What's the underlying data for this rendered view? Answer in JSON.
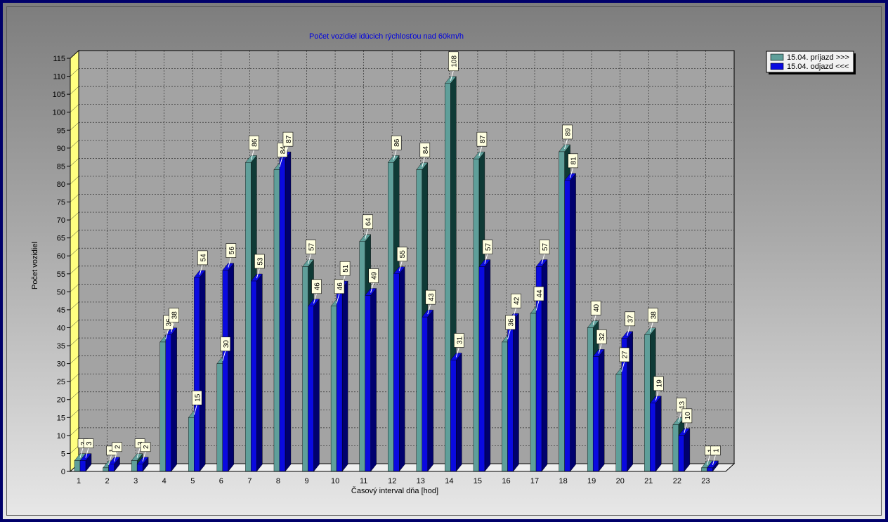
{
  "chart_data": {
    "type": "bar",
    "title": "Počet vozidiel idúcich rýchlosťou nad 60km/h",
    "xlabel": "Časový interval dňa [hod]",
    "ylabel": "Počet vozidiel",
    "ylim": [
      0,
      115
    ],
    "ytick_step": 5,
    "grid": true,
    "legend_position": "top-right",
    "categories": [
      "1",
      "2",
      "3",
      "4",
      "5",
      "6",
      "7",
      "8",
      "9",
      "10",
      "11",
      "12",
      "13",
      "14",
      "15",
      "16",
      "17",
      "18",
      "19",
      "20",
      "21",
      "22",
      "23"
    ],
    "series": [
      {
        "name": "15.04.  príjazd >>>",
        "color": "#5f9f9a",
        "dark": "#0f3a36",
        "values": [
          3,
          1,
          3,
          36,
          15,
          30,
          86,
          84,
          57,
          46,
          64,
          86,
          84,
          108,
          87,
          36,
          44,
          89,
          40,
          27,
          38,
          13,
          1
        ]
      },
      {
        "name": "15.04.  odjazd <<<",
        "color": "#0a0ae0",
        "dark": "#00006e",
        "values": [
          3,
          2,
          2,
          38,
          54,
          56,
          53,
          87,
          46,
          51,
          49,
          55,
          43,
          31,
          57,
          42,
          57,
          81,
          32,
          37,
          19,
          10,
          1
        ]
      }
    ]
  }
}
